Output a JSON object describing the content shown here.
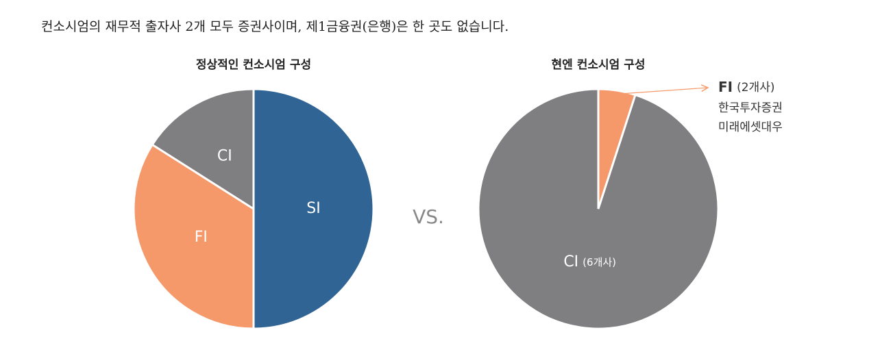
{
  "heading": "컨소시엄의 재무적 출자사 2개 모두 증권사이며, 제1금융권(은행)은 한 곳도 없습니다.",
  "separator": "VS.",
  "chart_data": [
    {
      "type": "pie",
      "title": "정상적인 컨소시엄 구성",
      "categories": [
        "SI",
        "FI",
        "CI"
      ],
      "values": [
        50,
        34,
        16
      ],
      "colors": [
        "#2f6494",
        "#f5996b",
        "#7f7e80"
      ]
    },
    {
      "type": "pie",
      "title": "현엔 컨소시엄 구성",
      "categories": [
        "FI",
        "CI"
      ],
      "values": [
        5,
        95
      ],
      "sublabels": [
        "(2개사)",
        "(6개사)"
      ],
      "notes": [
        [
          "한국투자증권",
          "미래에셋대우"
        ],
        []
      ],
      "colors": [
        "#f5996b",
        "#7f7e80"
      ]
    }
  ]
}
